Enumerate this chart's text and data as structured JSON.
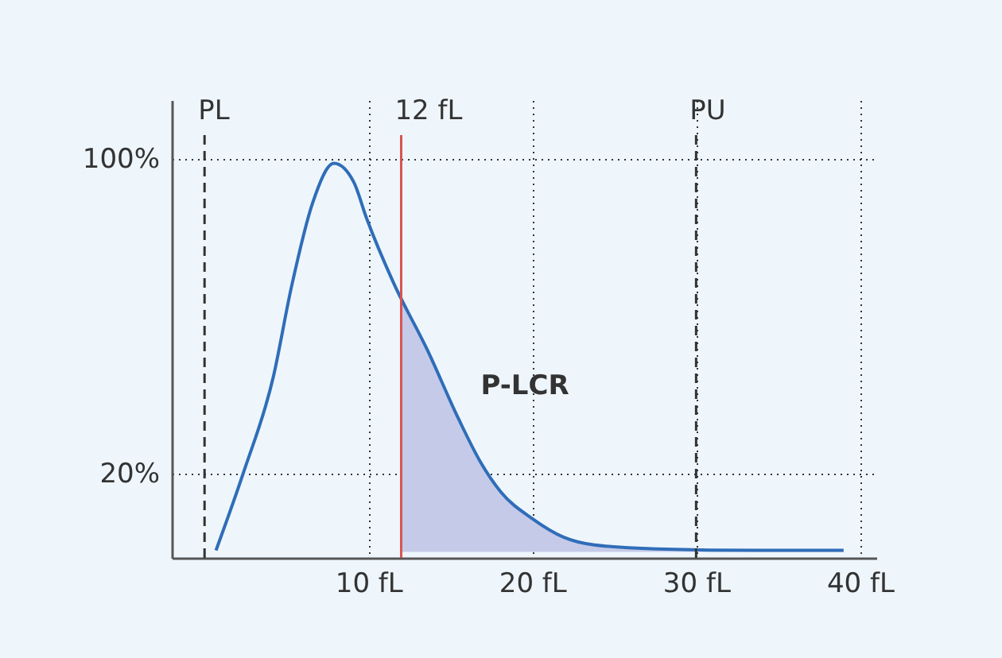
{
  "chart_data": {
    "type": "line",
    "xlim": [
      -2,
      41
    ],
    "ylim": [
      -1.5,
      115
    ],
    "xticks": [
      {
        "value": 10,
        "label": "10 fL"
      },
      {
        "value": 20,
        "label": "20 fL"
      },
      {
        "value": 30,
        "label": "30 fL"
      },
      {
        "value": 40,
        "label": "40 fL"
      }
    ],
    "yticks": [
      {
        "value": 20,
        "label": "20%"
      },
      {
        "value": 100,
        "label": "100%"
      }
    ],
    "grid": true,
    "marker": "none",
    "line_style": "solid",
    "series": [
      {
        "type": "area",
        "color": "#c6cae9",
        "x": [
          12,
          13.6,
          15.5,
          16.8,
          18.1,
          20,
          21.9,
          23.8,
          27.6,
          34,
          39
        ],
        "values": [
          64,
          51.4,
          33.9,
          23.2,
          15.2,
          8.5,
          3.8,
          1.8,
          0.8,
          0.4,
          0.4
        ]
      },
      {
        "color": "#2f6db8",
        "x": [
          0.7,
          2.4,
          4.2,
          5.3,
          6.6,
          7.9,
          9.1,
          9.9,
          11.5,
          13.6,
          15.5,
          16.8,
          18.1,
          20,
          21.9,
          23.8,
          27.6,
          34,
          39
        ],
        "values": [
          0.4,
          20.5,
          44.6,
          67.4,
          88.9,
          98.9,
          94.2,
          84.8,
          68.8,
          51.4,
          33.9,
          23.2,
          15.2,
          8.5,
          3.8,
          1.8,
          0.8,
          0.4,
          0.4
        ]
      }
    ],
    "ref_lines": [
      {
        "axis": "x",
        "value": 0,
        "label": "PL",
        "color": "#333333",
        "line_style": "dashed"
      },
      {
        "axis": "x",
        "value": 12,
        "label": "12 fL",
        "color": "#d9534f",
        "line_style": "solid"
      },
      {
        "axis": "x",
        "value": 30,
        "label": "PU",
        "color": "#333333",
        "line_style": "dashed"
      }
    ],
    "annotations": [
      "P-LCR"
    ]
  }
}
